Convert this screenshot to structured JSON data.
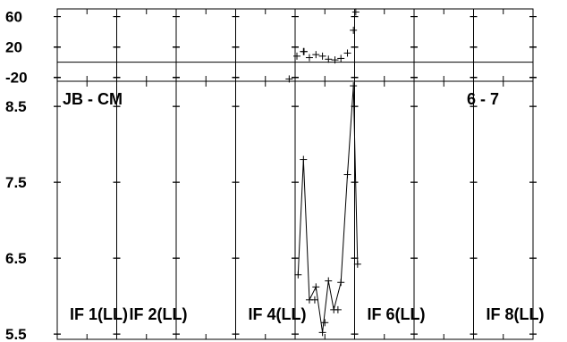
{
  "chart_data": [
    {
      "type": "scatter",
      "panel": "phase",
      "ylim": [
        -25,
        70
      ],
      "y_ticks": [
        60,
        20,
        -20
      ],
      "x_sections": 8,
      "reference_line": 0,
      "series": [
        {
          "x": [
            4.03,
            4.14,
            4.24,
            4.35,
            4.46,
            4.56,
            4.67,
            4.77,
            4.88,
            4.98
          ],
          "y": [
            8,
            14,
            6,
            10,
            8,
            4,
            3,
            5,
            12,
            42
          ]
        },
        {
          "x": [
            3.9,
            4.15,
            5.02
          ],
          "y": [
            -22,
            14,
            66
          ]
        }
      ]
    },
    {
      "type": "line",
      "panel": "amplitude",
      "title_left": "JB - CM",
      "title_right": "6 - 7",
      "ylim": [
        5.43,
        8.83
      ],
      "y_ticks": [
        "8.5",
        "7.5",
        "6.5",
        "5.5"
      ],
      "y_tick_values": [
        8.5,
        7.5,
        6.5,
        5.5
      ],
      "x_sections": 8,
      "section_labels": [
        "IF 1(LL)",
        "IF 2(LL)",
        "IF 4(LL)",
        "IF 6(LL)",
        "IF 8(LL)"
      ],
      "section_label_positions": [
        0,
        1,
        3,
        5,
        7
      ],
      "series": [
        {
          "x": [
            4.05,
            4.14,
            4.24,
            4.35,
            4.46,
            4.56,
            4.65,
            4.77,
            4.88,
            4.98,
            5.05
          ],
          "y": [
            6.28,
            7.8,
            5.95,
            6.12,
            5.52,
            6.2,
            5.82,
            6.18,
            7.6,
            8.77,
            6.42
          ]
        },
        {
          "x": [
            4.33,
            4.5,
            4.72
          ],
          "y": [
            5.95,
            5.65,
            5.82
          ]
        }
      ]
    }
  ]
}
